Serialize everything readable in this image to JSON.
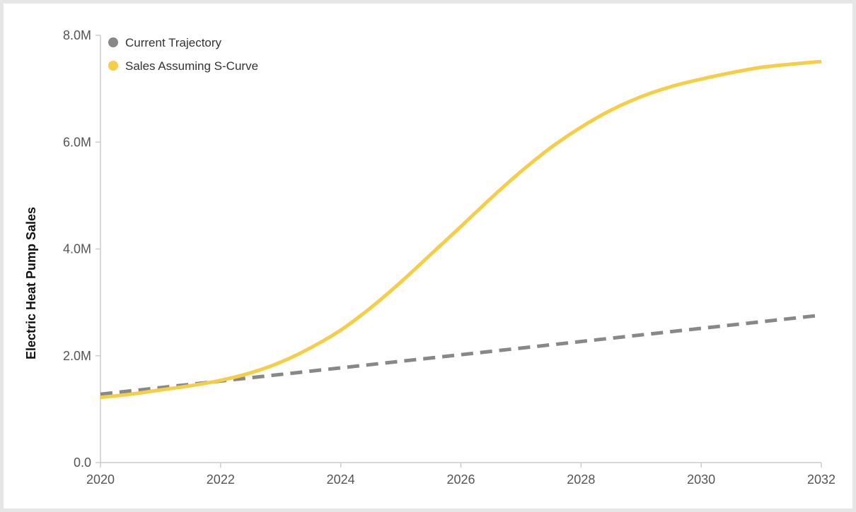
{
  "chart_data": {
    "type": "line",
    "title": "",
    "xlabel": "",
    "ylabel": "Electric Heat Pump Sales",
    "xlim": [
      2020,
      2032
    ],
    "ylim": [
      0,
      8000000
    ],
    "x_ticks": [
      {
        "value": 2020,
        "label": "2020"
      },
      {
        "value": 2022,
        "label": "2022"
      },
      {
        "value": 2024,
        "label": "2024"
      },
      {
        "value": 2026,
        "label": "2026"
      },
      {
        "value": 2028,
        "label": "2028"
      },
      {
        "value": 2030,
        "label": "2030"
      },
      {
        "value": 2032,
        "label": "2032"
      }
    ],
    "y_ticks": [
      {
        "value": 0,
        "label": "0.0"
      },
      {
        "value": 2000000,
        "label": "2.0M"
      },
      {
        "value": 4000000,
        "label": "4.0M"
      },
      {
        "value": 6000000,
        "label": "6.0M"
      },
      {
        "value": 8000000,
        "label": "8.0M"
      }
    ],
    "grid": false,
    "legend_position": "top-left",
    "series": [
      {
        "name": "Current Trajectory",
        "color": "#888888",
        "dashed": true,
        "x": [
          2020,
          2032
        ],
        "y": [
          1280000,
          2760000
        ]
      },
      {
        "name": "Sales Assuming S-Curve",
        "color": "#f5cd47",
        "dashed": false,
        "x": [
          2020,
          2020.5,
          2021,
          2021.5,
          2022,
          2022.5,
          2023,
          2023.5,
          2024,
          2024.5,
          2025,
          2025.5,
          2026,
          2026.5,
          2027,
          2027.5,
          2028,
          2028.5,
          2029,
          2029.5,
          2030,
          2030.5,
          2031,
          2031.5,
          2032
        ],
        "y": [
          1220000,
          1280000,
          1360000,
          1440000,
          1540000,
          1680000,
          1880000,
          2150000,
          2480000,
          2900000,
          3380000,
          3900000,
          4420000,
          4950000,
          5450000,
          5900000,
          6280000,
          6600000,
          6850000,
          7040000,
          7180000,
          7300000,
          7400000,
          7460000,
          7510000
        ]
      }
    ]
  }
}
